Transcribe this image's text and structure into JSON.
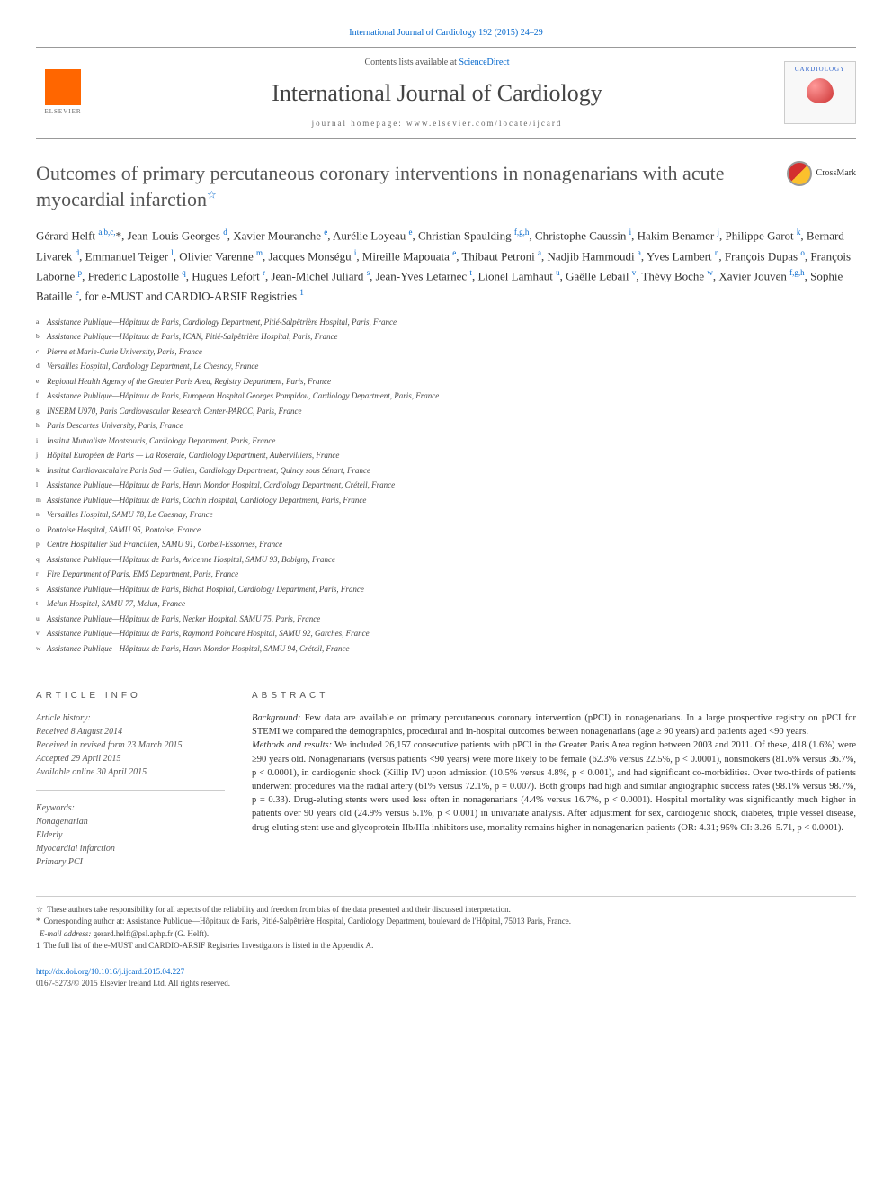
{
  "citation": {
    "journal": "International Journal of Cardiology",
    "ref": "192 (2015) 24–29"
  },
  "header": {
    "contents_prefix": "Contents lists available at ",
    "contents_link": "ScienceDirect",
    "journal_name": "International Journal of Cardiology",
    "homepage_prefix": "journal homepage: ",
    "homepage_url": "www.elsevier.com/locate/ijcard",
    "publisher": "ELSEVIER",
    "cover_label": "CARDIOLOGY"
  },
  "title": "Outcomes of primary percutaneous coronary interventions in nonagenarians with acute myocardial infarction",
  "title_note": "☆",
  "crossmark": "CrossMark",
  "authors_html": "Gérard Helft <sup>a,b,c,</sup>*, Jean-Louis Georges <sup>d</sup>, Xavier Mouranche <sup>e</sup>, Aurélie Loyeau <sup>e</sup>, Christian Spaulding <sup>f,g,h</sup>, Christophe Caussin <sup>i</sup>, Hakim Benamer <sup>j</sup>, Philippe Garot <sup>k</sup>, Bernard Livarek <sup>d</sup>, Emmanuel Teiger <sup>l</sup>, Olivier Varenne <sup>m</sup>, Jacques Monségu <sup>i</sup>, Mireille Mapouata <sup>e</sup>, Thibaut Petroni <sup>a</sup>, Nadjib Hammoudi <sup>a</sup>, Yves Lambert <sup>n</sup>, François Dupas <sup>o</sup>, François Laborne <sup>p</sup>, Frederic Lapostolle <sup>q</sup>, Hugues Lefort <sup>r</sup>, Jean-Michel Juliard <sup>s</sup>, Jean-Yves Letarnec <sup>t</sup>, Lionel Lamhaut <sup>u</sup>, Gaëlle Lebail <sup>v</sup>, Thévy Boche <sup>w</sup>, Xavier Jouven <sup>f,g,h</sup>, Sophie Bataille <sup>e</sup>, for e-MUST and CARDIO-ARSIF Registries <sup>1</sup>",
  "affiliations": [
    {
      "s": "a",
      "t": "Assistance Publique—Hôpitaux de Paris, Cardiology Department, Pitié-Salpêtrière Hospital, Paris, France"
    },
    {
      "s": "b",
      "t": "Assistance Publique—Hôpitaux de Paris, ICAN, Pitié-Salpêtrière Hospital, Paris, France"
    },
    {
      "s": "c",
      "t": "Pierre et Marie-Curie University, Paris, France"
    },
    {
      "s": "d",
      "t": "Versailles Hospital, Cardiology Department, Le Chesnay, France"
    },
    {
      "s": "e",
      "t": "Regional Health Agency of the Greater Paris Area, Registry Department, Paris, France"
    },
    {
      "s": "f",
      "t": "Assistance Publique—Hôpitaux de Paris, European Hospital Georges Pompidou, Cardiology Department, Paris, France"
    },
    {
      "s": "g",
      "t": "INSERM U970, Paris Cardiovascular Research Center-PARCC, Paris, France"
    },
    {
      "s": "h",
      "t": "Paris Descartes University, Paris, France"
    },
    {
      "s": "i",
      "t": "Institut Mutualiste Montsouris, Cardiology Department, Paris, France"
    },
    {
      "s": "j",
      "t": "Hôpital Européen de Paris — La Roseraie, Cardiology Department, Aubervilliers, France"
    },
    {
      "s": "k",
      "t": "Institut Cardiovasculaire Paris Sud — Galien, Cardiology Department, Quincy sous Sénart, France"
    },
    {
      "s": "l",
      "t": "Assistance Publique—Hôpitaux de Paris, Henri Mondor Hospital, Cardiology Department, Créteil, France"
    },
    {
      "s": "m",
      "t": "Assistance Publique—Hôpitaux de Paris, Cochin Hospital, Cardiology Department, Paris, France"
    },
    {
      "s": "n",
      "t": "Versailles Hospital, SAMU 78, Le Chesnay, France"
    },
    {
      "s": "o",
      "t": "Pontoise Hospital, SAMU 95, Pontoise, France"
    },
    {
      "s": "p",
      "t": "Centre Hospitalier Sud Francilien, SAMU 91, Corbeil-Essonnes, France"
    },
    {
      "s": "q",
      "t": "Assistance Publique—Hôpitaux de Paris, Avicenne Hospital, SAMU 93, Bobigny, France"
    },
    {
      "s": "r",
      "t": "Fire Department of Paris, EMS Department, Paris, France"
    },
    {
      "s": "s",
      "t": "Assistance Publique—Hôpitaux de Paris, Bichat Hospital, Cardiology Department, Paris, France"
    },
    {
      "s": "t",
      "t": "Melun Hospital, SAMU 77, Melun, France"
    },
    {
      "s": "u",
      "t": "Assistance Publique—Hôpitaux de Paris, Necker Hospital, SAMU 75, Paris, France"
    },
    {
      "s": "v",
      "t": "Assistance Publique—Hôpitaux de Paris, Raymond Poincaré Hospital, SAMU 92, Garches, France"
    },
    {
      "s": "w",
      "t": "Assistance Publique—Hôpitaux de Paris, Henri Mondor Hospital, SAMU 94, Créteil, France"
    }
  ],
  "info": {
    "heading": "ARTICLE INFO",
    "history_label": "Article history:",
    "history": [
      "Received 8 August 2014",
      "Received in revised form 23 March 2015",
      "Accepted 29 April 2015",
      "Available online 30 April 2015"
    ],
    "keywords_label": "Keywords:",
    "keywords": [
      "Nonagenarian",
      "Elderly",
      "Myocardial infarction",
      "Primary PCI"
    ]
  },
  "abstract": {
    "heading": "ABSTRACT",
    "body": "<em>Background:</em> Few data are available on primary percutaneous coronary intervention (pPCI) in nonagenarians. In a large prospective registry on pPCI for STEMI we compared the demographics, procedural and in-hospital outcomes between nonagenarians (age ≥ 90 years) and patients aged <90 years.<br><em>Methods and results:</em> We included 26,157 consecutive patients with pPCI in the Greater Paris Area region between 2003 and 2011. Of these, 418 (1.6%) were ≥90 years old. Nonagenarians (versus patients <90 years) were more likely to be female (62.3% versus 22.5%, p < 0.0001), nonsmokers (81.6% versus 36.7%, p < 0.0001), in cardiogenic shock (Killip IV) upon admission (10.5% versus 4.8%, p < 0.001), and had significant co-morbidities. Over two-thirds of patients underwent procedures via the radial artery (61% versus 72.1%, p = 0.007). Both groups had high and similar angiographic success rates (98.1% versus 98.7%, p = 0.33). Drug-eluting stents were used less often in nonagenarians (4.4% versus 16.7%, p < 0.0001). Hospital mortality was significantly much higher in patients over 90 years old (24.9% versus 5.1%, p < 0.001) in univariate analysis. After adjustment for sex, cardiogenic shock, diabetes, triple vessel disease, drug-eluting stent use and glycoprotein IIb/IIIa inhibitors use, mortality remains higher in nonagenarian patients (OR: 4.31; 95% CI: 3.26–5.71, p < 0.0001)."
  },
  "footnotes": [
    {
      "s": "☆",
      "t": "These authors take responsibility for all aspects of the reliability and freedom from bias of the data presented and their discussed interpretation."
    },
    {
      "s": "*",
      "t": "Corresponding author at: Assistance Publique—Hôpitaux de Paris, Pitié-Salpêtrière Hospital, Cardiology Department, boulevard de l'Hôpital, 75013 Paris, France."
    },
    {
      "s": "",
      "t": "<em>E-mail address:</em> <a>gerard.helft@psl.aphp.fr</a> (G. Helft)."
    },
    {
      "s": "1",
      "t": "The full list of the e-MUST and CARDIO-ARSIF Registries Investigators is listed in the <a>Appendix A</a>."
    }
  ],
  "doi": {
    "url": "http://dx.doi.org/10.1016/j.ijcard.2015.04.227",
    "issn": "0167-5273/© 2015 Elsevier Ireland Ltd. All rights reserved."
  }
}
